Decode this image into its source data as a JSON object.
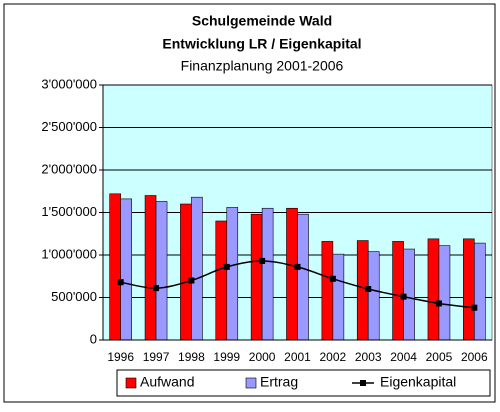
{
  "chart_data": {
    "type": "bar",
    "title": [
      "Schulgemeinde Wald",
      "Entwicklung LR / Eigenkapital"
    ],
    "subtitle": "Finanzplanung 2001-2006",
    "categories": [
      "1996",
      "1997",
      "1998",
      "1999",
      "2000",
      "2001",
      "2002",
      "2003",
      "2004",
      "2005",
      "2006"
    ],
    "series": [
      {
        "name": "Aufwand",
        "type": "bar",
        "color": "#ff0000",
        "values": [
          1720000,
          1700000,
          1600000,
          1400000,
          1480000,
          1550000,
          1160000,
          1170000,
          1160000,
          1190000,
          1190000
        ]
      },
      {
        "name": "Ertrag",
        "type": "bar",
        "color": "#9999ff",
        "values": [
          1660000,
          1630000,
          1680000,
          1560000,
          1550000,
          1480000,
          1010000,
          1040000,
          1070000,
          1110000,
          1140000
        ]
      },
      {
        "name": "Eigenkapital",
        "type": "line",
        "color": "#000000",
        "values": [
          680000,
          610000,
          700000,
          860000,
          930000,
          860000,
          720000,
          600000,
          510000,
          430000,
          380000
        ]
      }
    ],
    "ylim": [
      0,
      3000000
    ],
    "yticks": [
      {
        "value": 0,
        "label": "0"
      },
      {
        "value": 500000,
        "label": "500'000"
      },
      {
        "value": 1000000,
        "label": "1'000'000"
      },
      {
        "value": 1500000,
        "label": "1'500'000"
      },
      {
        "value": 2000000,
        "label": "2'000'000"
      },
      {
        "value": 2500000,
        "label": "2'500'000"
      },
      {
        "value": 3000000,
        "label": "3'000'000"
      }
    ],
    "grid": true,
    "legend": "bottom",
    "plot_background": "#ccffff"
  }
}
